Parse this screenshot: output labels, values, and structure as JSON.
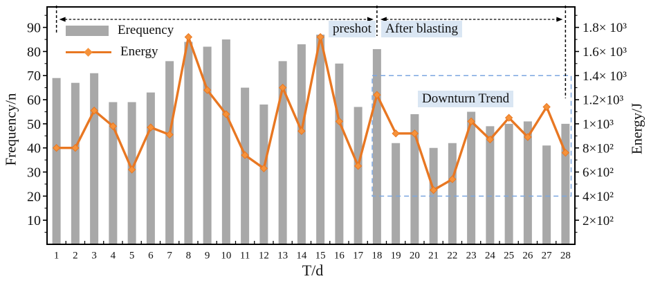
{
  "colors": {
    "bar": "#a8a8a8",
    "energy_line": "#e87722",
    "energy_marker": "#f6923a",
    "downturn_box": "#7ba6e0",
    "annotation_bg": "#dae6f3",
    "axis": "#000000"
  },
  "annotations": {
    "preshot": "preshot",
    "after_blasting": "After blasting",
    "downturn_trend": "Downturn Trend"
  },
  "chart_data": {
    "type": "bar+line",
    "x_label": "T/d",
    "y_left_label": "Frequency/n",
    "y_right_label": "Energy/J",
    "categories": [
      1,
      2,
      3,
      4,
      5,
      6,
      7,
      8,
      9,
      10,
      11,
      12,
      13,
      14,
      15,
      16,
      17,
      18,
      19,
      20,
      21,
      22,
      23,
      24,
      25,
      26,
      27,
      28
    ],
    "series": [
      {
        "name": "Erequency",
        "type": "bar",
        "axis": "left",
        "values": [
          69,
          67,
          71,
          59,
          59,
          63,
          76,
          84,
          82,
          85,
          65,
          58,
          76,
          83,
          87,
          75,
          57,
          81,
          42,
          54,
          40,
          42,
          55,
          49,
          50,
          51,
          41,
          50
        ]
      },
      {
        "name": "Energy",
        "type": "line",
        "marker": "diamond",
        "axis": "right",
        "values_J": [
          800,
          800,
          1110,
          980,
          620,
          970,
          910,
          1720,
          1280,
          1080,
          740,
          630,
          1300,
          940,
          1720,
          1020,
          650,
          1240,
          920,
          920,
          450,
          540,
          1020,
          870,
          1050,
          890,
          1140,
          760
        ]
      }
    ],
    "left_axis": {
      "ticks": [
        10,
        20,
        30,
        40,
        50,
        60,
        70,
        80,
        90
      ],
      "min": 0,
      "max": 98.5
    },
    "right_axis": {
      "units_per_left_unit": 20,
      "tick_values_J": [
        1800,
        1600,
        1400,
        1200,
        1000,
        800,
        600,
        400,
        200
      ],
      "tick_labels": [
        "1.8× 10³",
        "1.6× 10³",
        "1.4× 10³",
        "1.2×10³",
        "1×10³",
        "8×10²",
        "6×10²",
        "4×10²",
        "2×10²"
      ]
    },
    "regions": {
      "guide_line_days": [
        1,
        18,
        28
      ],
      "arrow_spans_days": [
        [
          1,
          18
        ],
        [
          18,
          28
        ]
      ],
      "downturn_box": {
        "day_from": 17.75,
        "day_to": 28.3,
        "energy_from_J": 400,
        "energy_to_J": 1400
      }
    }
  }
}
